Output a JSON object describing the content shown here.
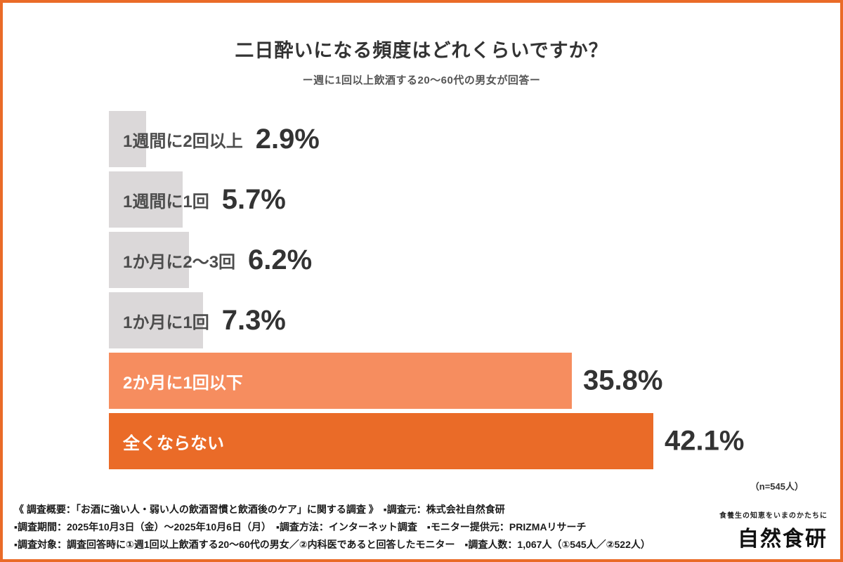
{
  "header": {
    "title": "二日酔いになる頻度はどれくらいですか？",
    "subtitle": "ー週に1回以上飲酒する20〜60代の男女が回答ー"
  },
  "chart_data": {
    "type": "bar",
    "orientation": "horizontal",
    "title": "二日酔いになる頻度はどれくらいですか？",
    "subtitle": "ー週に1回以上飲酒する20〜60代の男女が回答ー",
    "categories": [
      "1週間に2回以上",
      "1週間に1回",
      "1か月に2〜3回",
      "1か月に1回",
      "2か月に1回以下",
      "全くならない"
    ],
    "values": [
      2.9,
      5.7,
      6.2,
      7.3,
      35.8,
      42.1
    ],
    "value_labels": [
      "2.9%",
      "5.7%",
      "6.2%",
      "7.3%",
      "35.8%",
      "42.1%"
    ],
    "bar_colors": [
      "#DBD8D9",
      "#DBD8D9",
      "#DBD8D9",
      "#DBD8D9",
      "#F68D5F",
      "#EA6B28"
    ],
    "highlight": [
      false,
      false,
      false,
      false,
      true,
      true
    ],
    "xlim": [
      0,
      45
    ],
    "legend": "none",
    "grid": false,
    "n_note": "（n=545人）"
  },
  "footer": {
    "lines": [
      "《 調査概要：「お酒に強い人・弱い人の飲酒習慣と飲酒後のケア」に関する調査 》　▪調査元：株式会社自然食研",
      "▪調査期間：2025年10月3日（金）〜2025年10月6日（月）　▪調査方法：インターネット調査　▪モニター提供元：PRIZMAリサーチ",
      "▪調査対象：調査回答時に①週1回以上飲酒する20〜60代の男女／②内科医であると回答したモニター　▪調査人数：1,067人（①545人／②522人）"
    ],
    "logo": {
      "tagline": "食養生の知恵をいまのかたちに",
      "name": "自然食研"
    }
  },
  "colors": {
    "border": "#EA6B28",
    "bar_gray": "#DBD8D9",
    "bar_orange_light": "#F68D5F",
    "bar_orange_dark": "#EA6B28"
  }
}
